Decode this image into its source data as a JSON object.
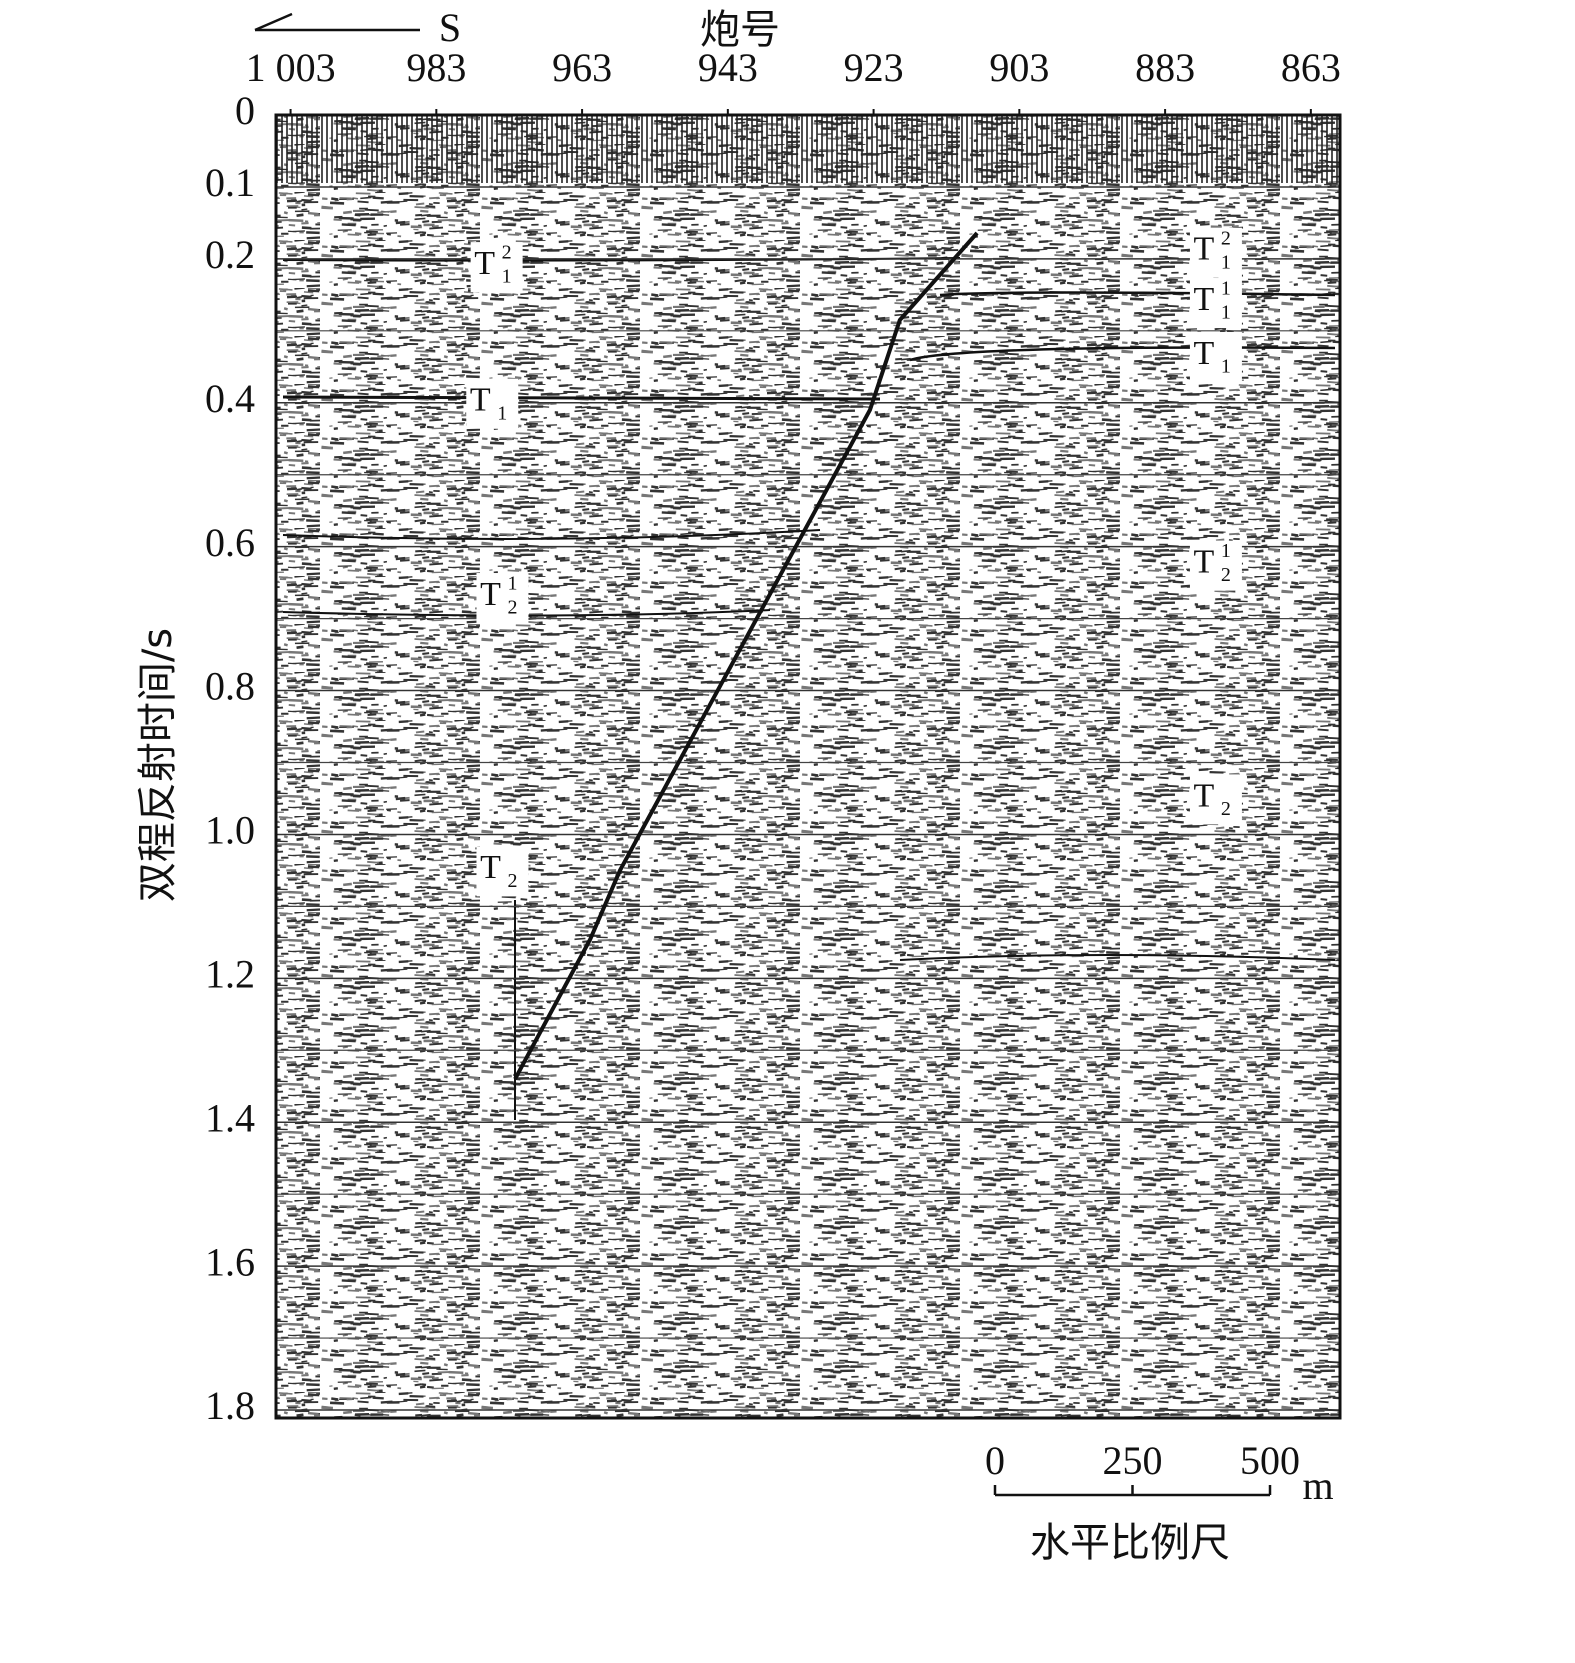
{
  "chart_data": {
    "type": "seismic-section",
    "direction_label": "S",
    "xlabel": "炮号",
    "ylabel": "双程反射时间/s",
    "xlim": [
      1005,
      859
    ],
    "xticks": [
      {
        "value": 1003,
        "label": "1 003"
      },
      983,
      963,
      943,
      923,
      903,
      883,
      863
    ],
    "ylim": [
      0,
      1.8
    ],
    "yticks": [
      0,
      0.1,
      0.2,
      0.4,
      0.6,
      0.8,
      {
        "value": 1,
        "label": "1.0"
      },
      1.2,
      1.4,
      1.6,
      1.8
    ],
    "minor_yticks": [
      0.3,
      0.5,
      0.7,
      0.9,
      1.1,
      1.3,
      1.5,
      1.7
    ],
    "fault": {
      "color": "#111111",
      "x": [
        908.8,
        919.4,
        923.5,
        957.8,
        961.9,
        972.2
      ],
      "y": [
        0.164,
        0.285,
        0.41,
        1.05,
        1.146,
        1.34
      ]
    },
    "annotations": [
      {
        "base": "T",
        "sub": "1",
        "sup": "2",
        "x": 975,
        "y": 0.21
      },
      {
        "base": "T",
        "sub": "1",
        "x": 975.6,
        "y": 0.4
      },
      {
        "base": "T",
        "sub": "2",
        "sup": "1",
        "x": 974.2,
        "y": 0.67
      },
      {
        "base": "T",
        "sub": "2",
        "x": 974.2,
        "y": 1.05
      },
      {
        "base": "T",
        "sub": "1",
        "sup": "2",
        "x": 876.3,
        "y": 0.19
      },
      {
        "base": "T",
        "sub": "1",
        "sup": "1",
        "x": 876.3,
        "y": 0.26
      },
      {
        "base": "T",
        "sub": "1",
        "x": 876.3,
        "y": 0.335
      },
      {
        "base": "T",
        "sub": "2",
        "sup": "1",
        "x": 876.3,
        "y": 0.625
      },
      {
        "base": "T",
        "sub": "2",
        "x": 876.3,
        "y": 0.95
      }
    ],
    "scale_bar": {
      "ticks": [
        0,
        250,
        500
      ],
      "unit": "m",
      "label": "水平比例尺"
    }
  }
}
